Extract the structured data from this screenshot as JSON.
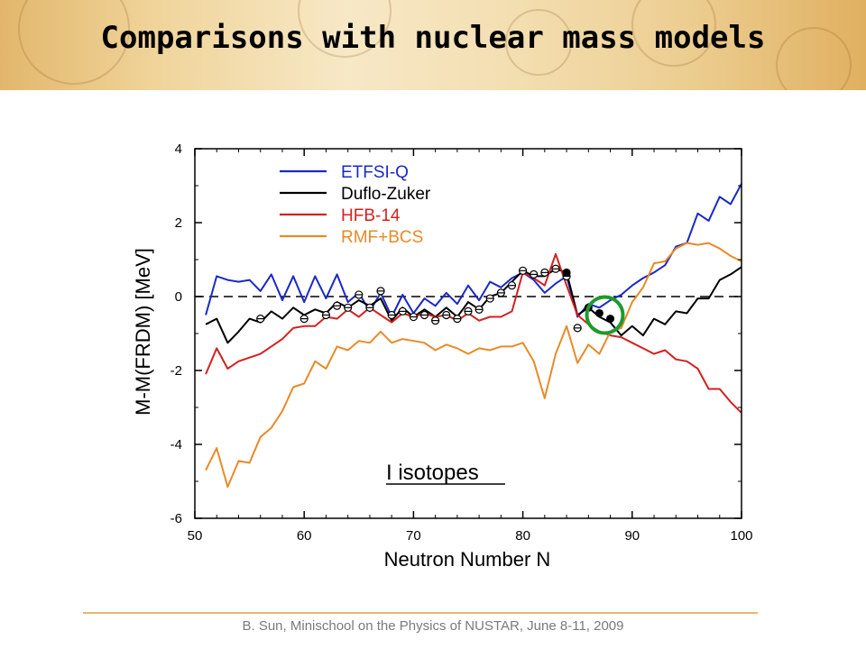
{
  "slide": {
    "title": "Comparisons with nuclear mass models",
    "footer": "B. Sun, Minischool on the Physics of NUSTAR, June 8-11, 2009"
  },
  "chart_data": {
    "type": "line",
    "xlabel": "Neutron Number N",
    "ylabel": "M-M(FRDM) [MeV]",
    "xlim": [
      50,
      100
    ],
    "ylim": [
      -6,
      4
    ],
    "xticks": [
      50,
      60,
      70,
      80,
      90,
      100
    ],
    "yticks": [
      -6,
      -4,
      -2,
      0,
      2,
      4
    ],
    "legend_position": "top-left",
    "annotation": "I  isotopes",
    "reference_line": {
      "y": 0,
      "style": "dashed"
    },
    "series": [
      {
        "name": "ETFSI-Q",
        "color": "#1a28c8",
        "points": [
          [
            51,
            -0.5
          ],
          [
            52,
            0.55
          ],
          [
            53,
            0.45
          ],
          [
            54,
            0.4
          ],
          [
            55,
            0.45
          ],
          [
            56,
            0.15
          ],
          [
            57,
            0.6
          ],
          [
            58,
            -0.1
          ],
          [
            59,
            0.55
          ],
          [
            60,
            -0.15
          ],
          [
            61,
            0.55
          ],
          [
            62,
            -0.05
          ],
          [
            63,
            0.6
          ],
          [
            64,
            -0.15
          ],
          [
            65,
            0.1
          ],
          [
            66,
            -0.4
          ],
          [
            67,
            0.1
          ],
          [
            68,
            -0.55
          ],
          [
            69,
            0.05
          ],
          [
            70,
            -0.45
          ],
          [
            71,
            -0.05
          ],
          [
            72,
            -0.25
          ],
          [
            73,
            0.1
          ],
          [
            74,
            -0.2
          ],
          [
            75,
            0.3
          ],
          [
            76,
            -0.1
          ],
          [
            77,
            0.4
          ],
          [
            78,
            0.25
          ],
          [
            79,
            0.5
          ],
          [
            80,
            0.65
          ],
          [
            81,
            0.45
          ],
          [
            82,
            0.1
          ],
          [
            83,
            0.35
          ],
          [
            84,
            0.55
          ],
          [
            85,
            -0.55
          ],
          [
            86,
            -0.2
          ],
          [
            87,
            -0.3
          ],
          [
            88,
            -0.1
          ],
          [
            89,
            0.05
          ],
          [
            90,
            0.3
          ],
          [
            91,
            0.5
          ],
          [
            92,
            0.65
          ],
          [
            93,
            0.85
          ],
          [
            94,
            1.35
          ],
          [
            95,
            1.45
          ],
          [
            96,
            2.25
          ],
          [
            97,
            2.05
          ],
          [
            98,
            2.7
          ],
          [
            99,
            2.5
          ],
          [
            100,
            3.05
          ]
        ]
      },
      {
        "name": "Duflo-Zuker",
        "color": "#000000",
        "points": [
          [
            51,
            -0.75
          ],
          [
            52,
            -0.6
          ],
          [
            53,
            -1.25
          ],
          [
            54,
            -0.95
          ],
          [
            55,
            -0.6
          ],
          [
            56,
            -0.7
          ],
          [
            57,
            -0.4
          ],
          [
            58,
            -0.6
          ],
          [
            59,
            -0.3
          ],
          [
            60,
            -0.5
          ],
          [
            61,
            -0.35
          ],
          [
            62,
            -0.45
          ],
          [
            63,
            -0.15
          ],
          [
            64,
            -0.3
          ],
          [
            65,
            -0.1
          ],
          [
            66,
            -0.25
          ],
          [
            67,
            -0.05
          ],
          [
            68,
            -0.65
          ],
          [
            69,
            -0.3
          ],
          [
            70,
            -0.55
          ],
          [
            71,
            -0.35
          ],
          [
            72,
            -0.55
          ],
          [
            73,
            -0.3
          ],
          [
            74,
            -0.55
          ],
          [
            75,
            -0.15
          ],
          [
            76,
            -0.35
          ],
          [
            77,
            0.0
          ],
          [
            78,
            0.1
          ],
          [
            79,
            0.4
          ],
          [
            80,
            0.7
          ],
          [
            81,
            0.55
          ],
          [
            82,
            0.55
          ],
          [
            83,
            0.75
          ],
          [
            84,
            0.65
          ],
          [
            85,
            -0.5
          ],
          [
            86,
            -0.3
          ],
          [
            87,
            -0.55
          ],
          [
            88,
            -0.7
          ],
          [
            89,
            -1.05
          ],
          [
            90,
            -0.8
          ],
          [
            91,
            -1.05
          ],
          [
            92,
            -0.6
          ],
          [
            93,
            -0.75
          ],
          [
            94,
            -0.4
          ],
          [
            95,
            -0.45
          ],
          [
            96,
            -0.05
          ],
          [
            97,
            -0.05
          ],
          [
            98,
            0.45
          ],
          [
            99,
            0.6
          ],
          [
            100,
            0.8
          ]
        ]
      },
      {
        "name": "HFB-14",
        "color": "#d42020",
        "points": [
          [
            51,
            -2.1
          ],
          [
            52,
            -1.4
          ],
          [
            53,
            -1.95
          ],
          [
            54,
            -1.75
          ],
          [
            55,
            -1.65
          ],
          [
            56,
            -1.55
          ],
          [
            57,
            -1.35
          ],
          [
            58,
            -1.15
          ],
          [
            59,
            -0.85
          ],
          [
            60,
            -0.8
          ],
          [
            61,
            -0.8
          ],
          [
            62,
            -0.55
          ],
          [
            63,
            -0.6
          ],
          [
            64,
            -0.35
          ],
          [
            65,
            -0.55
          ],
          [
            66,
            -0.3
          ],
          [
            67,
            -0.5
          ],
          [
            68,
            -0.7
          ],
          [
            69,
            -0.45
          ],
          [
            70,
            -0.55
          ],
          [
            71,
            -0.45
          ],
          [
            72,
            -0.55
          ],
          [
            73,
            -0.5
          ],
          [
            74,
            -0.65
          ],
          [
            75,
            -0.45
          ],
          [
            76,
            -0.65
          ],
          [
            77,
            -0.55
          ],
          [
            78,
            -0.55
          ],
          [
            79,
            -0.4
          ],
          [
            80,
            0.65
          ],
          [
            81,
            0.5
          ],
          [
            82,
            0.3
          ],
          [
            83,
            1.15
          ],
          [
            84,
            0.3
          ],
          [
            85,
            -0.5
          ],
          [
            86,
            -0.75
          ],
          [
            87,
            -0.95
          ],
          [
            88,
            -1.05
          ],
          [
            89,
            -1.1
          ],
          [
            90,
            -1.25
          ],
          [
            91,
            -1.4
          ],
          [
            92,
            -1.55
          ],
          [
            93,
            -1.45
          ],
          [
            94,
            -1.7
          ],
          [
            95,
            -1.75
          ],
          [
            96,
            -1.95
          ],
          [
            97,
            -2.5
          ],
          [
            98,
            -2.5
          ],
          [
            99,
            -2.85
          ],
          [
            100,
            -3.15
          ]
        ]
      },
      {
        "name": "RMF+BCS",
        "color": "#e88a28",
        "points": [
          [
            51,
            -4.7
          ],
          [
            52,
            -4.1
          ],
          [
            53,
            -5.15
          ],
          [
            54,
            -4.45
          ],
          [
            55,
            -4.5
          ],
          [
            56,
            -3.8
          ],
          [
            57,
            -3.55
          ],
          [
            58,
            -3.1
          ],
          [
            59,
            -2.45
          ],
          [
            60,
            -2.35
          ],
          [
            61,
            -1.75
          ],
          [
            62,
            -1.95
          ],
          [
            63,
            -1.35
          ],
          [
            64,
            -1.45
          ],
          [
            65,
            -1.2
          ],
          [
            66,
            -1.25
          ],
          [
            67,
            -0.95
          ],
          [
            68,
            -1.25
          ],
          [
            69,
            -1.15
          ],
          [
            70,
            -1.2
          ],
          [
            71,
            -1.25
          ],
          [
            72,
            -1.45
          ],
          [
            73,
            -1.3
          ],
          [
            74,
            -1.4
          ],
          [
            75,
            -1.55
          ],
          [
            76,
            -1.4
          ],
          [
            77,
            -1.45
          ],
          [
            78,
            -1.35
          ],
          [
            79,
            -1.35
          ],
          [
            80,
            -1.25
          ],
          [
            81,
            -1.75
          ],
          [
            82,
            -2.75
          ],
          [
            83,
            -1.55
          ],
          [
            84,
            -0.8
          ],
          [
            85,
            -1.8
          ],
          [
            86,
            -1.3
          ],
          [
            87,
            -1.55
          ],
          [
            88,
            -0.95
          ],
          [
            89,
            -0.85
          ],
          [
            90,
            -0.15
          ],
          [
            91,
            0.25
          ],
          [
            92,
            0.9
          ],
          [
            93,
            0.95
          ],
          [
            94,
            1.3
          ],
          [
            95,
            1.45
          ],
          [
            96,
            1.4
          ],
          [
            97,
            1.45
          ],
          [
            98,
            1.3
          ],
          [
            99,
            1.1
          ],
          [
            100,
            0.95
          ]
        ]
      }
    ],
    "open_points": [
      [
        56,
        -0.6
      ],
      [
        60,
        -0.6
      ],
      [
        62,
        -0.5
      ],
      [
        63,
        -0.25
      ],
      [
        64,
        -0.3
      ],
      [
        65,
        0.05
      ],
      [
        66,
        -0.3
      ],
      [
        67,
        0.15
      ],
      [
        68,
        -0.5
      ],
      [
        69,
        -0.4
      ],
      [
        70,
        -0.55
      ],
      [
        71,
        -0.5
      ],
      [
        72,
        -0.65
      ],
      [
        73,
        -0.5
      ],
      [
        74,
        -0.6
      ],
      [
        75,
        -0.4
      ],
      [
        76,
        -0.35
      ],
      [
        77,
        -0.05
      ],
      [
        78,
        0.1
      ],
      [
        79,
        0.3
      ],
      [
        80,
        0.7
      ],
      [
        81,
        0.6
      ],
      [
        82,
        0.65
      ],
      [
        83,
        0.75
      ],
      [
        84,
        0.55
      ],
      [
        85,
        -0.85
      ]
    ],
    "filled_points": [
      [
        84,
        0.65
      ],
      [
        86,
        -0.3
      ],
      [
        87,
        -0.45
      ],
      [
        88,
        -0.6
      ]
    ],
    "highlight_circle": {
      "x": 87.5,
      "y": -0.5,
      "color": "#1e9a2e"
    }
  }
}
